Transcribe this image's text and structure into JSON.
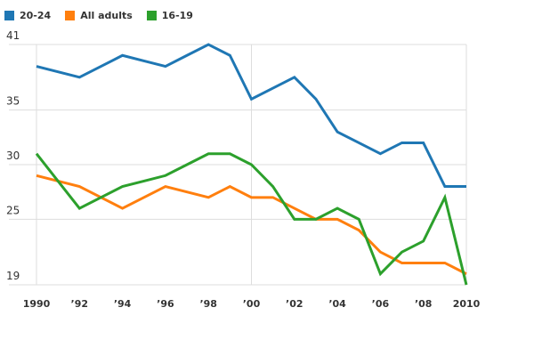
{
  "chart_data": {
    "type": "line",
    "x": [
      1990,
      1991,
      1992,
      1993,
      1994,
      1995,
      1996,
      1997,
      1998,
      1999,
      2000,
      2001,
      2002,
      2003,
      2004,
      2005,
      2006,
      2007,
      2008,
      2009,
      2010
    ],
    "x_tick_values": [
      1990,
      1992,
      1994,
      1996,
      1998,
      2000,
      2002,
      2004,
      2006,
      2008,
      2010
    ],
    "x_tick_labels": [
      "1990",
      "’92",
      "’94",
      "’96",
      "’98",
      "’00",
      "’02",
      "’04",
      "’06",
      "’08",
      "2010"
    ],
    "y_tick_values": [
      41,
      35,
      30,
      25,
      19
    ],
    "y_tick_labels": [
      "41",
      "35",
      "30",
      "25",
      "19"
    ],
    "ylim": [
      19,
      41
    ],
    "xlim": [
      1990,
      2010
    ],
    "legend_position": "top-left",
    "series": [
      {
        "name": "20-24",
        "color": "#1f77b4",
        "values": [
          39,
          38.5,
          38,
          39,
          40,
          39.5,
          39,
          40,
          41,
          40,
          36,
          37,
          38,
          36,
          33,
          32,
          31,
          32,
          32,
          28,
          28
        ]
      },
      {
        "name": "All adults",
        "color": "#ff7f0e",
        "values": [
          29,
          28.5,
          28,
          27,
          26,
          27,
          28,
          27.5,
          27,
          28,
          27,
          27,
          26,
          25,
          25,
          24,
          22,
          21,
          21,
          21,
          20
        ]
      },
      {
        "name": "16-19",
        "color": "#2ca02c",
        "values": [
          31,
          28.5,
          26,
          27,
          28,
          28.5,
          29,
          30,
          31,
          31,
          30,
          28,
          25,
          25,
          26,
          25,
          20,
          22,
          23,
          27,
          19
        ]
      }
    ]
  }
}
